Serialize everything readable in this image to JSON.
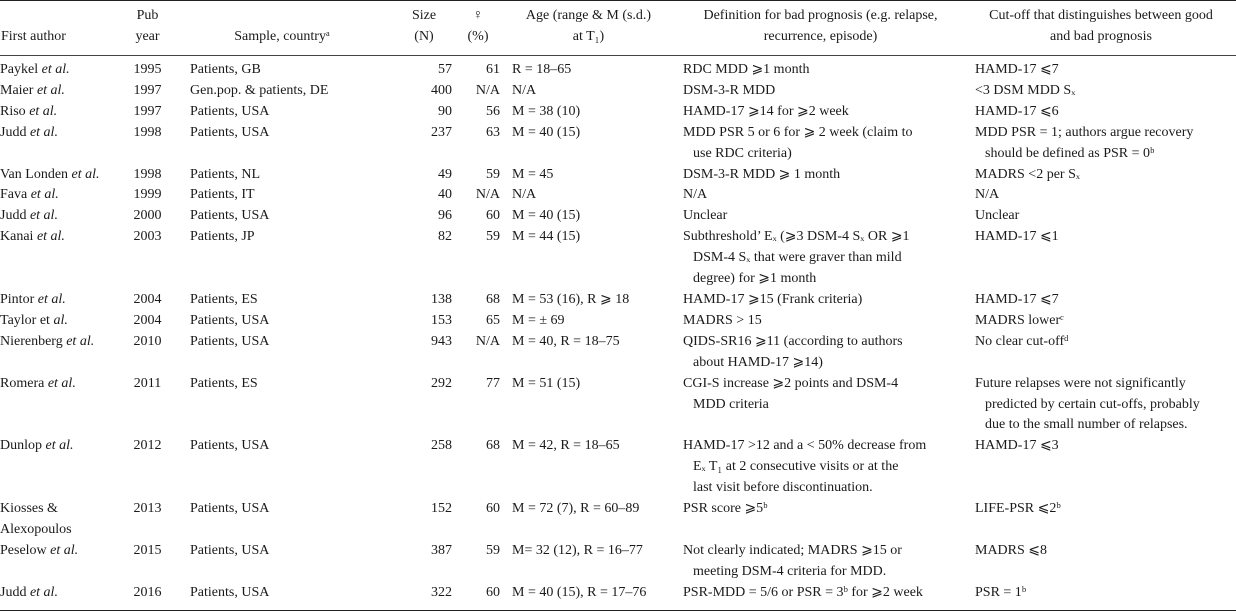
{
  "header": {
    "author": "First author",
    "year": "Pub\nyear",
    "sample": "Sample, countryᵃ",
    "size": "Size\n(N)",
    "female": "♀\n(%)",
    "age": "Age (range & M (s.d.)\nat T₁)",
    "definition": "Definition for bad prognosis (e.g. relapse,\nrecurrence, episode)",
    "cutoff": "Cut-off that distinguishes between good\nand bad prognosis"
  },
  "rows": [
    {
      "name": "Paykel",
      "suffix": "et al.",
      "year": "1995",
      "sample": "Patients, GB",
      "size": "57",
      "female": "61",
      "age": "R = 18–65",
      "definition": "RDC MDD  ⩾1 month",
      "cutoff": "HAMD-17  ⩽7"
    },
    {
      "name": "Maier",
      "suffix": "et al.",
      "year": "1997",
      "sample": "Gen.pop. & patients, DE",
      "size": "400",
      "female": "N/A",
      "age": "N/A",
      "definition": "DSM-3-R MDD",
      "cutoff": "<3 DSM MDD Sₓ"
    },
    {
      "name": "Riso",
      "suffix": "et al.",
      "year": "1997",
      "sample": "Patients, USA",
      "size": "90",
      "female": "56",
      "age": "M = 38 (10)",
      "definition": "HAMD-17 ⩾14 for ⩾2 week",
      "cutoff": "HAMD-17  ⩽6"
    },
    {
      "name": "Judd",
      "suffix": "et al.",
      "year": "1998",
      "sample": "Patients, USA",
      "size": "237",
      "female": "63",
      "age": "M = 40 (15)",
      "definition": "MDD PSR 5 or 6 for  ⩾ 2 week (claim to\nuse RDC criteria)",
      "cutoff": "MDD PSR = 1; authors argue recovery\nshould be defined as PSR = 0ᵇ"
    },
    {
      "name": "Van Londen",
      "suffix": "et al.",
      "year": "1998",
      "sample": "Patients, NL",
      "size": "49",
      "female": "59",
      "age": "M = 45",
      "definition": "DSM-3-R MDD  ⩾  1 month",
      "cutoff": "MADRS <2 per Sₓ"
    },
    {
      "name": "Fava",
      "suffix": "et al.",
      "year": "1999",
      "sample": "Patients, IT",
      "size": "40",
      "female": "N/A",
      "age": "N/A",
      "definition": "N/A",
      "cutoff": "N/A"
    },
    {
      "name": "Judd",
      "suffix": "et al.",
      "year": "2000",
      "sample": "Patients, USA",
      "size": "96",
      "female": "60",
      "age": "M = 40 (15)",
      "definition": "Unclear",
      "cutoff": "Unclear"
    },
    {
      "name": "Kanai",
      "suffix": "et al.",
      "year": "2003",
      "sample": "Patients, JP",
      "size": "82",
      "female": "59",
      "age": "M = 44 (15)",
      "definition": "Subthreshold’ Eₓ (⩾3 DSM-4 Sₓ OR ⩾1\nDSM-4 Sₓ that were graver than mild\ndegree) for ⩾1 month",
      "cutoff": "HAMD-17  ⩽1"
    },
    {
      "name": "Pintor",
      "suffix": "et al.",
      "year": "2004",
      "sample": "Patients, ES",
      "size": "138",
      "female": "68",
      "age": "M = 53 (16), R ⩾ 18",
      "definition": "HAMD-17  ⩾15 (Frank criteria)",
      "cutoff": "HAMD-17  ⩽7"
    },
    {
      "name": "Taylor et",
      "suffix": "al.",
      "year": "2004",
      "sample": "Patients, USA",
      "size": "153",
      "female": "65",
      "age": "M =  ± 69",
      "definition": "MADRS > 15",
      "cutoff": "MADRS lowerᶜ"
    },
    {
      "name": "Nierenberg",
      "suffix": "et al.",
      "year": "2010",
      "sample": "Patients, USA",
      "size": "943",
      "female": "N/A",
      "age": "M = 40, R = 18–75",
      "definition": "QIDS-SR16  ⩾11 (according to authors\nabout HAMD-17  ⩾14)",
      "cutoff": "No clear cut-offᵈ"
    },
    {
      "name": "Romera",
      "suffix": "et al.",
      "year": "2011",
      "sample": "Patients, ES",
      "size": "292",
      "female": "77",
      "age": "M = 51 (15)",
      "definition": "CGI-S increase  ⩾2 points and DSM-4\nMDD criteria",
      "cutoff": "Future relapses were not significantly\npredicted by certain cut-offs, probably\ndue to the small number of relapses."
    },
    {
      "name": "Dunlop",
      "suffix": "et al.",
      "year": "2012",
      "sample": "Patients, USA",
      "size": "258",
      "female": "68",
      "age": "M = 42,  R = 18–65",
      "definition": "HAMD-17 >12 and a < 50% decrease from\nEₓ T₁ at 2 consecutive visits or at the\nlast visit before discontinuation.",
      "cutoff": "HAMD-17  ⩽3"
    },
    {
      "name": "Kiosses & Alexopoulos",
      "suffix": "",
      "year": "2013",
      "sample": "Patients, USA",
      "size": "152",
      "female": "60",
      "age": "M = 72 (7), R = 60–89",
      "definition": "PSR score  ⩾5ᵇ",
      "cutoff": "LIFE-PSR  ⩽2ᵇ"
    },
    {
      "name": "Peselow",
      "suffix": "et al.",
      "year": "2015",
      "sample": "Patients, USA",
      "size": "387",
      "female": "59",
      "age": "M=  32 (12), R = 16–77",
      "definition": "Not clearly indicated; MADRS  ⩾15 or\nmeeting DSM-4 criteria for MDD.",
      "cutoff": "MADRS  ⩽8"
    },
    {
      "name": "Judd",
      "suffix": "et al.",
      "year": "2016",
      "sample": "Patients, USA",
      "size": "322",
      "female": "60",
      "age": "M = 40 (15), R = 17–76",
      "definition": "PSR-MDD = 5/6 or PSR = 3ᵇ for  ⩾2 week",
      "cutoff": "PSR = 1ᵇ"
    }
  ]
}
